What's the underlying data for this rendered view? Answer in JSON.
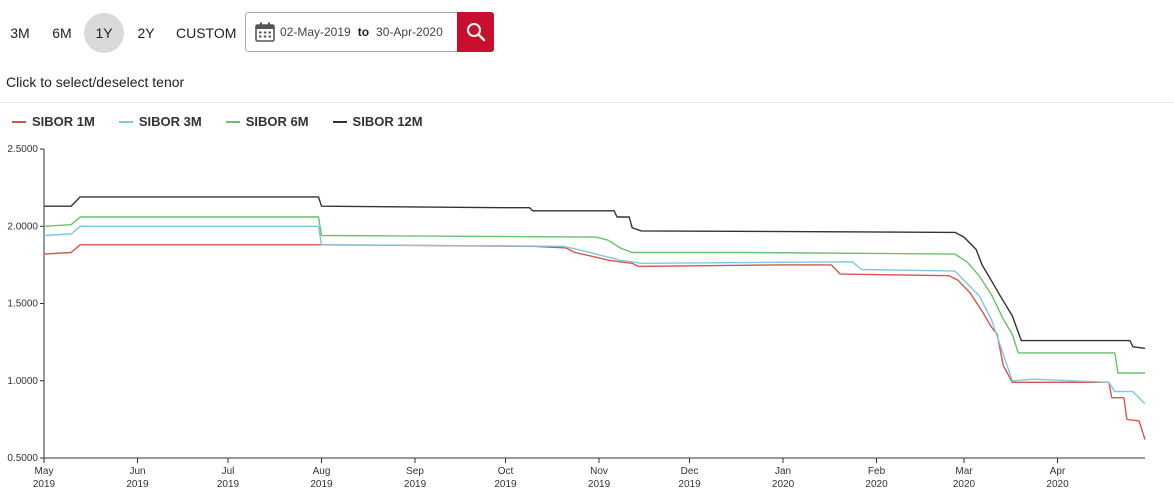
{
  "periods": [
    {
      "label": "3M",
      "active": false
    },
    {
      "label": "6M",
      "active": false
    },
    {
      "label": "1Y",
      "active": true
    },
    {
      "label": "2Y",
      "active": false
    },
    {
      "label": "CUSTOM",
      "active": false
    }
  ],
  "date_range": {
    "from": "02-May-2019",
    "to_label": "to",
    "to": "30-Apr-2020"
  },
  "icons": {
    "calendar": "calendar-icon",
    "search": "search-icon"
  },
  "hint": "Click to select/deselect tenor",
  "colors": {
    "accent": "#c8102e",
    "active_period": "#d9d9d9"
  },
  "chart_data": {
    "type": "line",
    "ylim": [
      0.5,
      2.5
    ],
    "yticks": [
      "2.5000",
      "2.0000",
      "1.5000",
      "1.0000",
      "0.5000"
    ],
    "ytick_values": [
      2.5,
      2.0,
      1.5,
      1.0,
      0.5
    ],
    "xticks": [
      {
        "date": "2019-05-01",
        "month": "May",
        "year": "2019"
      },
      {
        "date": "2019-06-01",
        "month": "Jun",
        "year": "2019"
      },
      {
        "date": "2019-07-01",
        "month": "Jul",
        "year": "2019"
      },
      {
        "date": "2019-08-01",
        "month": "Aug",
        "year": "2019"
      },
      {
        "date": "2019-09-01",
        "month": "Sep",
        "year": "2019"
      },
      {
        "date": "2019-10-01",
        "month": "Oct",
        "year": "2019"
      },
      {
        "date": "2019-11-01",
        "month": "Nov",
        "year": "2019"
      },
      {
        "date": "2019-12-01",
        "month": "Dec",
        "year": "2019"
      },
      {
        "date": "2020-01-01",
        "month": "Jan",
        "year": "2020"
      },
      {
        "date": "2020-02-01",
        "month": "Feb",
        "year": "2020"
      },
      {
        "date": "2020-03-01",
        "month": "Mar",
        "year": "2020"
      },
      {
        "date": "2020-04-01",
        "month": "Apr",
        "year": "2020"
      }
    ],
    "x_range": [
      "2019-05-01",
      "2020-04-30"
    ],
    "series": [
      {
        "name": "SIBOR 1M",
        "color": "#d9534f",
        "points": [
          [
            "2019-05-01",
            1.82
          ],
          [
            "2019-05-10",
            1.83
          ],
          [
            "2019-05-13",
            1.88
          ],
          [
            "2019-07-31",
            1.88
          ],
          [
            "2019-08-01",
            1.88
          ],
          [
            "2019-10-10",
            1.87
          ],
          [
            "2019-10-21",
            1.86
          ],
          [
            "2019-10-24",
            1.83
          ],
          [
            "2019-10-31",
            1.8
          ],
          [
            "2019-11-04",
            1.78
          ],
          [
            "2019-11-08",
            1.77
          ],
          [
            "2019-11-12",
            1.76
          ],
          [
            "2019-11-14",
            1.74
          ],
          [
            "2019-12-31",
            1.75
          ],
          [
            "2020-01-17",
            1.75
          ],
          [
            "2020-01-20",
            1.69
          ],
          [
            "2020-02-25",
            1.68
          ],
          [
            "2020-02-28",
            1.65
          ],
          [
            "2020-03-03",
            1.57
          ],
          [
            "2020-03-07",
            1.45
          ],
          [
            "2020-03-10",
            1.35
          ],
          [
            "2020-03-12",
            1.3
          ],
          [
            "2020-03-14",
            1.1
          ],
          [
            "2020-03-17",
            0.99
          ],
          [
            "2020-04-18",
            0.99
          ],
          [
            "2020-04-19",
            0.89
          ],
          [
            "2020-04-23",
            0.89
          ],
          [
            "2020-04-24",
            0.75
          ],
          [
            "2020-04-28",
            0.74
          ],
          [
            "2020-04-30",
            0.62
          ]
        ]
      },
      {
        "name": "SIBOR 3M",
        "color": "#7ec8e3",
        "points": [
          [
            "2019-05-01",
            1.94
          ],
          [
            "2019-05-10",
            1.95
          ],
          [
            "2019-05-13",
            2.0
          ],
          [
            "2019-07-31",
            2.0
          ],
          [
            "2019-08-01",
            1.88
          ],
          [
            "2019-10-20",
            1.87
          ],
          [
            "2019-10-25",
            1.85
          ],
          [
            "2019-10-31",
            1.82
          ],
          [
            "2019-11-08",
            1.78
          ],
          [
            "2019-11-12",
            1.77
          ],
          [
            "2019-11-15",
            1.76
          ],
          [
            "2020-01-24",
            1.77
          ],
          [
            "2020-01-27",
            1.72
          ],
          [
            "2020-02-27",
            1.71
          ],
          [
            "2020-03-02",
            1.63
          ],
          [
            "2020-03-06",
            1.55
          ],
          [
            "2020-03-10",
            1.4
          ],
          [
            "2020-03-13",
            1.23
          ],
          [
            "2020-03-17",
            1.0
          ],
          [
            "2020-03-24",
            1.01
          ],
          [
            "2020-04-18",
            0.99
          ],
          [
            "2020-04-20",
            0.93
          ],
          [
            "2020-04-26",
            0.93
          ],
          [
            "2020-04-30",
            0.85
          ]
        ]
      },
      {
        "name": "SIBOR 6M",
        "color": "#6cbf6c",
        "points": [
          [
            "2019-05-01",
            2.0
          ],
          [
            "2019-05-10",
            2.01
          ],
          [
            "2019-05-13",
            2.06
          ],
          [
            "2019-07-31",
            2.06
          ],
          [
            "2019-08-01",
            1.94
          ],
          [
            "2019-10-31",
            1.93
          ],
          [
            "2019-11-04",
            1.91
          ],
          [
            "2019-11-08",
            1.86
          ],
          [
            "2019-11-12",
            1.83
          ],
          [
            "2019-12-20",
            1.83
          ],
          [
            "2020-02-27",
            1.82
          ],
          [
            "2020-03-02",
            1.77
          ],
          [
            "2020-03-06",
            1.68
          ],
          [
            "2020-03-10",
            1.56
          ],
          [
            "2020-03-14",
            1.4
          ],
          [
            "2020-03-17",
            1.3
          ],
          [
            "2020-03-19",
            1.18
          ],
          [
            "2020-04-20",
            1.18
          ],
          [
            "2020-04-21",
            1.05
          ],
          [
            "2020-04-30",
            1.05
          ]
        ]
      },
      {
        "name": "SIBOR 12M",
        "color": "#333333",
        "points": [
          [
            "2019-05-01",
            2.13
          ],
          [
            "2019-05-10",
            2.13
          ],
          [
            "2019-05-13",
            2.19
          ],
          [
            "2019-07-31",
            2.19
          ],
          [
            "2019-08-01",
            2.13
          ],
          [
            "2019-09-30",
            2.12
          ],
          [
            "2019-10-09",
            2.12
          ],
          [
            "2019-10-10",
            2.1
          ],
          [
            "2019-11-06",
            2.1
          ],
          [
            "2019-11-07",
            2.06
          ],
          [
            "2019-11-11",
            2.06
          ],
          [
            "2019-11-12",
            1.99
          ],
          [
            "2019-11-15",
            1.97
          ],
          [
            "2020-02-27",
            1.96
          ],
          [
            "2020-03-01",
            1.93
          ],
          [
            "2020-03-05",
            1.85
          ],
          [
            "2020-03-07",
            1.75
          ],
          [
            "2020-03-10",
            1.65
          ],
          [
            "2020-03-13",
            1.55
          ],
          [
            "2020-03-17",
            1.42
          ],
          [
            "2020-03-20",
            1.26
          ],
          [
            "2020-04-25",
            1.26
          ],
          [
            "2020-04-26",
            1.22
          ],
          [
            "2020-04-30",
            1.21
          ]
        ]
      }
    ]
  }
}
